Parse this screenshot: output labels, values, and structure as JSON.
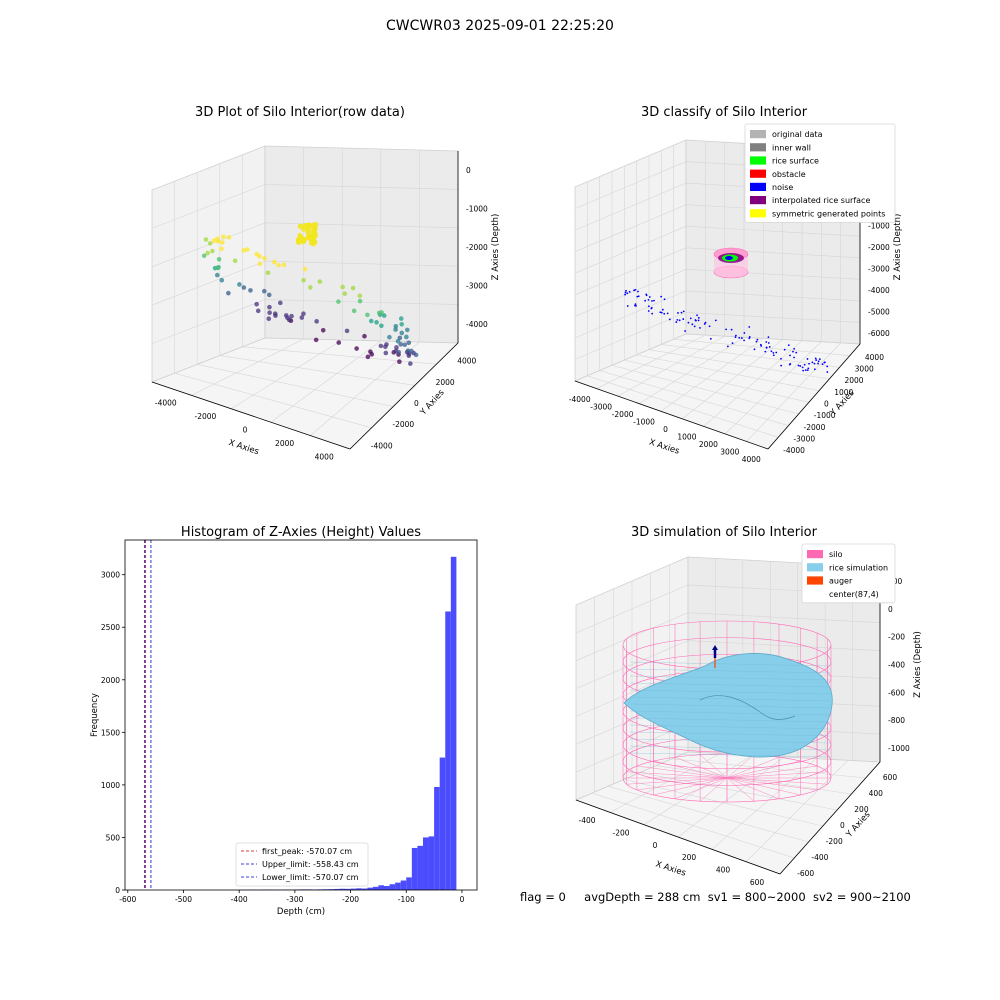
{
  "figure_title": "CWCWR03 2025-09-01 22:25:20",
  "footer": {
    "flag": "flag = 0",
    "avg_depth": "avgDepth = 288 cm",
    "sv1": "sv1 = 800~2000",
    "sv2": "sv2 = 900~2100"
  },
  "chart_data": [
    {
      "type": "scatter",
      "title": "3D Plot of Silo Interior(row data)",
      "xlabel": "X Axies",
      "ylabel": "Y Axies",
      "zlabel": "Z Axies (Depth)",
      "x_ticks": [
        "-4000",
        "-2000",
        "0",
        "2000",
        "4000"
      ],
      "y_ticks": [
        "-4000",
        "-2000",
        "0",
        "2000",
        "4000"
      ],
      "z_ticks": [
        "-4000",
        "-3000",
        "-2000",
        "-1000",
        "0"
      ],
      "colormap": "viridis",
      "highlight_color": "#f2e51d"
    },
    {
      "type": "scatter",
      "title": "3D classify of Silo Interior",
      "xlabel": "X Axies",
      "ylabel": "Y Axies",
      "zlabel": "Z Axies (Depth)",
      "x_ticks": [
        "-4000",
        "-3000",
        "-2000",
        "-1000",
        "0",
        "1000",
        "2000",
        "3000",
        "4000"
      ],
      "y_ticks": [
        "-4000",
        "-3000",
        "-2000",
        "-1000",
        "0",
        "1000",
        "2000",
        "3000",
        "4000"
      ],
      "z_ticks": [
        "-6000",
        "-5000",
        "-4000",
        "-3000",
        "-2000",
        "-1000",
        "0",
        "1000",
        "2000"
      ],
      "legend": [
        {
          "label": "original data",
          "color": "#b3b3b3"
        },
        {
          "label": "inner wall",
          "color": "#808080"
        },
        {
          "label": "rice surface",
          "color": "#00ff00"
        },
        {
          "label": "obstacle",
          "color": "#ff0000"
        },
        {
          "label": "noise",
          "color": "#0000ff"
        },
        {
          "label": "interpolated rice surface",
          "color": "#800080"
        },
        {
          "label": "symmetric generated points",
          "color": "#ffff00"
        }
      ],
      "legend_position": "top-right"
    },
    {
      "type": "bar",
      "title": "Histogram of Z-Axies (Height) Values",
      "xlabel": "Depth (cm)",
      "ylabel": "Frequency",
      "xlim": [
        -605,
        27
      ],
      "ylim": [
        0,
        3330
      ],
      "x_ticks": [
        -600,
        -500,
        -400,
        -300,
        -200,
        -100,
        0
      ],
      "y_ticks": [
        0,
        500,
        1000,
        1500,
        2000,
        2500,
        3000
      ],
      "bin_width": 10,
      "bins": [
        {
          "x": -400,
          "y": 3
        },
        {
          "x": -390,
          "y": 2
        },
        {
          "x": -380,
          "y": 3
        },
        {
          "x": -370,
          "y": 2
        },
        {
          "x": -360,
          "y": 4
        },
        {
          "x": -350,
          "y": 3
        },
        {
          "x": -340,
          "y": 3
        },
        {
          "x": -330,
          "y": 2
        },
        {
          "x": -320,
          "y": 4
        },
        {
          "x": -310,
          "y": 3
        },
        {
          "x": -300,
          "y": 5
        },
        {
          "x": -290,
          "y": 6
        },
        {
          "x": -280,
          "y": 6
        },
        {
          "x": -270,
          "y": 5
        },
        {
          "x": -260,
          "y": 6
        },
        {
          "x": -250,
          "y": 7
        },
        {
          "x": -240,
          "y": 8
        },
        {
          "x": -230,
          "y": 10
        },
        {
          "x": -220,
          "y": 12
        },
        {
          "x": -210,
          "y": 11
        },
        {
          "x": -200,
          "y": 13
        },
        {
          "x": -190,
          "y": 16
        },
        {
          "x": -180,
          "y": 14
        },
        {
          "x": -170,
          "y": 22
        },
        {
          "x": -160,
          "y": 30
        },
        {
          "x": -150,
          "y": 45
        },
        {
          "x": -140,
          "y": 38
        },
        {
          "x": -130,
          "y": 55
        },
        {
          "x": -120,
          "y": 70
        },
        {
          "x": -110,
          "y": 90
        },
        {
          "x": -100,
          "y": 120
        },
        {
          "x": -90,
          "y": 400
        },
        {
          "x": -80,
          "y": 420
        },
        {
          "x": -70,
          "y": 500
        },
        {
          "x": -60,
          "y": 510
        },
        {
          "x": -50,
          "y": 980
        },
        {
          "x": -40,
          "y": 1260
        },
        {
          "x": -30,
          "y": 2650
        },
        {
          "x": -20,
          "y": 3170
        }
      ],
      "bar_color": "#4c4cff",
      "vlines": [
        {
          "label": "first_peak: -570.07 cm",
          "x": -570.07,
          "color": "#cc0000"
        },
        {
          "label": "Upper_limit: -558.43 cm",
          "x": -558.43,
          "color": "#0000cc"
        },
        {
          "label": "Lower_limit: -570.07 cm",
          "x": -570.07,
          "color": "#0000cc"
        }
      ],
      "legend_position": "lower-center"
    },
    {
      "type": "surface",
      "title": "3D simulation of Silo Interior",
      "xlabel": "X Axies",
      "ylabel": "Y Axies",
      "zlabel": "Z Axies (Depth)",
      "x_ticks": [
        "-400",
        "-200",
        "0",
        "200",
        "400",
        "600"
      ],
      "y_ticks": [
        "-600",
        "-400",
        "-200",
        "0",
        "200",
        "400",
        "600"
      ],
      "z_ticks": [
        "-1000",
        "-800",
        "-600",
        "-400",
        "-200",
        "0",
        "200"
      ],
      "legend": [
        {
          "label": "silo",
          "color": "#ff69b4"
        },
        {
          "label": "rice simulation",
          "color": "#87ceeb"
        },
        {
          "label": "auger",
          "color": "#ff4500"
        },
        {
          "label": "center(87,4)",
          "color": ""
        }
      ],
      "legend_position": "top-right"
    }
  ]
}
